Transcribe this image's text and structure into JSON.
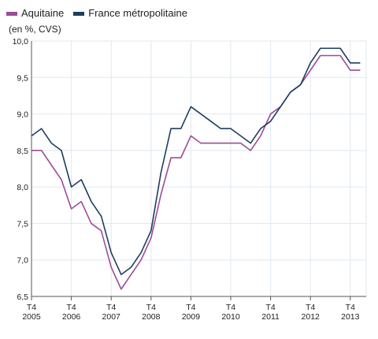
{
  "legend": [
    {
      "label": "Aquitaine",
      "color": "#9e4a9a"
    },
    {
      "label": "France métropolitaine",
      "color": "#1e3d5f"
    }
  ],
  "unit_label": "(en %, CVS)",
  "chart_data": {
    "type": "line",
    "title": "",
    "xlabel": "",
    "ylabel": "(en %, CVS)",
    "ylim": [
      6.5,
      10.0
    ],
    "y_ticks": [
      "10,0",
      "9,5",
      "9,0",
      "8,5",
      "8,0",
      "7,5",
      "7,0",
      "6,5"
    ],
    "y_tick_values": [
      10.0,
      9.5,
      9.0,
      8.5,
      8.0,
      7.5,
      7.0,
      6.5
    ],
    "x_ticks": [
      {
        "quarter": "T4",
        "year": "2005"
      },
      {
        "quarter": "T4",
        "year": "2006"
      },
      {
        "quarter": "T4",
        "year": "2007"
      },
      {
        "quarter": "T4",
        "year": "2008"
      },
      {
        "quarter": "T4",
        "year": "2009"
      },
      {
        "quarter": "T4",
        "year": "2010"
      },
      {
        "quarter": "T4",
        "year": "2011"
      },
      {
        "quarter": "T4",
        "year": "2012"
      },
      {
        "quarter": "T4",
        "year": "2013"
      }
    ],
    "categories": [
      "T4 2005",
      "T1 2006",
      "T2 2006",
      "T3 2006",
      "T4 2006",
      "T1 2007",
      "T2 2007",
      "T3 2007",
      "T4 2007",
      "T1 2008",
      "T2 2008",
      "T3 2008",
      "T4 2008",
      "T1 2009",
      "T2 2009",
      "T3 2009",
      "T4 2009",
      "T1 2010",
      "T2 2010",
      "T3 2010",
      "T4 2010",
      "T1 2011",
      "T2 2011",
      "T3 2011",
      "T4 2011",
      "T1 2012",
      "T2 2012",
      "T3 2012",
      "T4 2012",
      "T1 2013",
      "T2 2013",
      "T3 2013",
      "T4 2013",
      "T1 2014"
    ],
    "grid": true,
    "legend_position": "top-left",
    "series": [
      {
        "name": "Aquitaine",
        "color": "#9e4a9a",
        "values": [
          8.5,
          8.5,
          8.3,
          8.1,
          7.7,
          7.8,
          7.5,
          7.4,
          6.9,
          6.6,
          6.8,
          7.0,
          7.3,
          7.9,
          8.4,
          8.4,
          8.7,
          8.6,
          8.6,
          8.6,
          8.6,
          8.6,
          8.5,
          8.7,
          9.0,
          9.1,
          9.3,
          9.4,
          9.6,
          9.8,
          9.8,
          9.8,
          9.6,
          9.6
        ]
      },
      {
        "name": "France métropolitaine",
        "color": "#1e3d5f",
        "values": [
          8.7,
          8.8,
          8.6,
          8.5,
          8.0,
          8.1,
          7.8,
          7.6,
          7.1,
          6.8,
          6.9,
          7.1,
          7.4,
          8.2,
          8.8,
          8.8,
          9.1,
          9.0,
          8.9,
          8.8,
          8.8,
          8.7,
          8.6,
          8.8,
          8.9,
          9.1,
          9.3,
          9.4,
          9.7,
          9.9,
          9.9,
          9.9,
          9.7,
          9.7
        ]
      }
    ]
  }
}
